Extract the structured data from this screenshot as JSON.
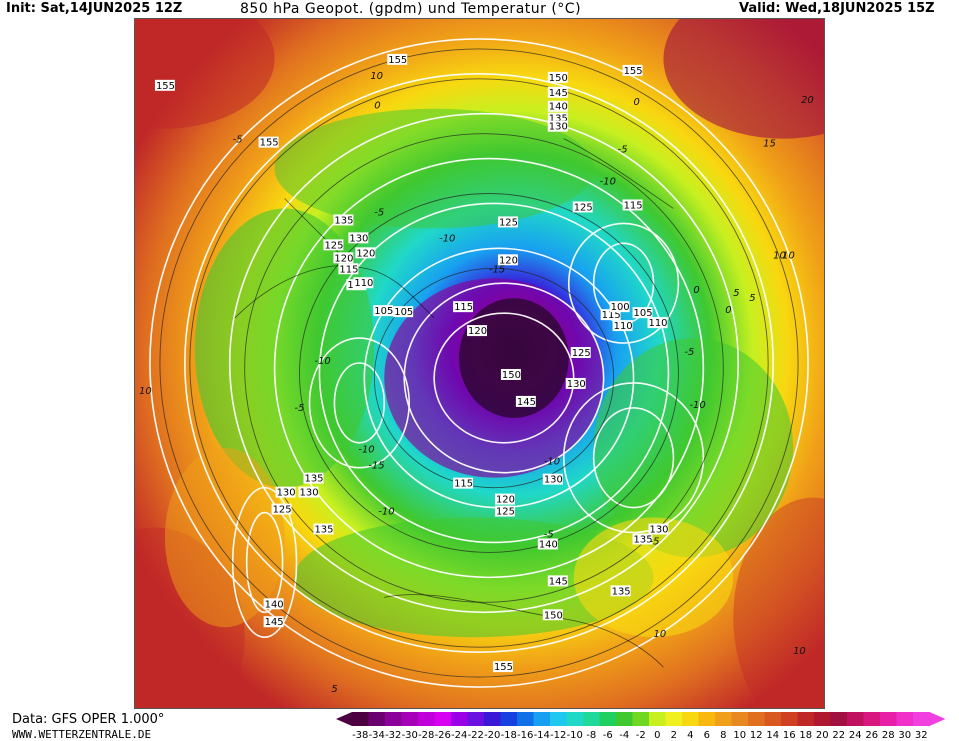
{
  "header": {
    "init": "Init: Sat,14JUN2025 12Z",
    "title": "850 hPa Geopot. (gpdm) und Temperatur (°C)",
    "valid": "Valid: Wed,18JUN2025 15Z"
  },
  "footer": {
    "data_source": "Data: GFS OPER 1.000°",
    "website": "WWW.WETTERZENTRALE.DE"
  },
  "legend": {
    "ticks": [
      "-38",
      "-34",
      "-32",
      "-30",
      "-28",
      "-26",
      "-24",
      "-22",
      "-20",
      "-18",
      "-16",
      "-14",
      "-12",
      "-10",
      "-8",
      "-6",
      "-4",
      "-2",
      "0",
      "2",
      "4",
      "6",
      "8",
      "10",
      "12",
      "14",
      "16",
      "18",
      "20",
      "22",
      "24",
      "26",
      "28",
      "30",
      "32"
    ],
    "colors": [
      "#4d0040",
      "#6a0070",
      "#8a0098",
      "#a600b8",
      "#c000d8",
      "#d800f0",
      "#9a00e8",
      "#6a10e0",
      "#3a18d8",
      "#1840e0",
      "#1070e8",
      "#18a0f0",
      "#20c8f0",
      "#20d8c8",
      "#20d89a",
      "#20d060",
      "#40c830",
      "#70d820",
      "#c8f020",
      "#f0f020",
      "#f8d810",
      "#f8b810",
      "#f0a018",
      "#e88820",
      "#e07020",
      "#d85820",
      "#d04020",
      "#c02828",
      "#b01830",
      "#a01040",
      "#c01060",
      "#d81880",
      "#e820a8",
      "#f030c8",
      "#f040e0"
    ]
  },
  "map": {
    "geopotential_labels": [
      "155",
      "155",
      "155",
      "155",
      "150",
      "145",
      "140",
      "135",
      "130",
      "135",
      "125",
      "130",
      "120",
      "115",
      "110",
      "115",
      "125",
      "120",
      "115",
      "110",
      "105",
      "100",
      "105",
      "110",
      "120",
      "125",
      "130",
      "145",
      "150",
      "130",
      "135",
      "115",
      "120",
      "125",
      "130",
      "135",
      "140",
      "145",
      "150",
      "155",
      "105",
      "110",
      "115",
      "120",
      "125",
      "135",
      "130",
      "125",
      "140",
      "145",
      "135",
      "130"
    ],
    "temperature_labels": [
      "10",
      "10",
      "0",
      "0",
      "-5",
      "-5",
      "-5",
      "-10",
      "-10",
      "-15",
      "-10",
      "5",
      "0",
      "5",
      "-5",
      "-10",
      "-15",
      "-10",
      "-5",
      "10",
      "10",
      "15",
      "20",
      "-5",
      "-10",
      "10",
      "5",
      "0",
      "-10",
      "-5",
      "10",
      "5"
    ]
  }
}
